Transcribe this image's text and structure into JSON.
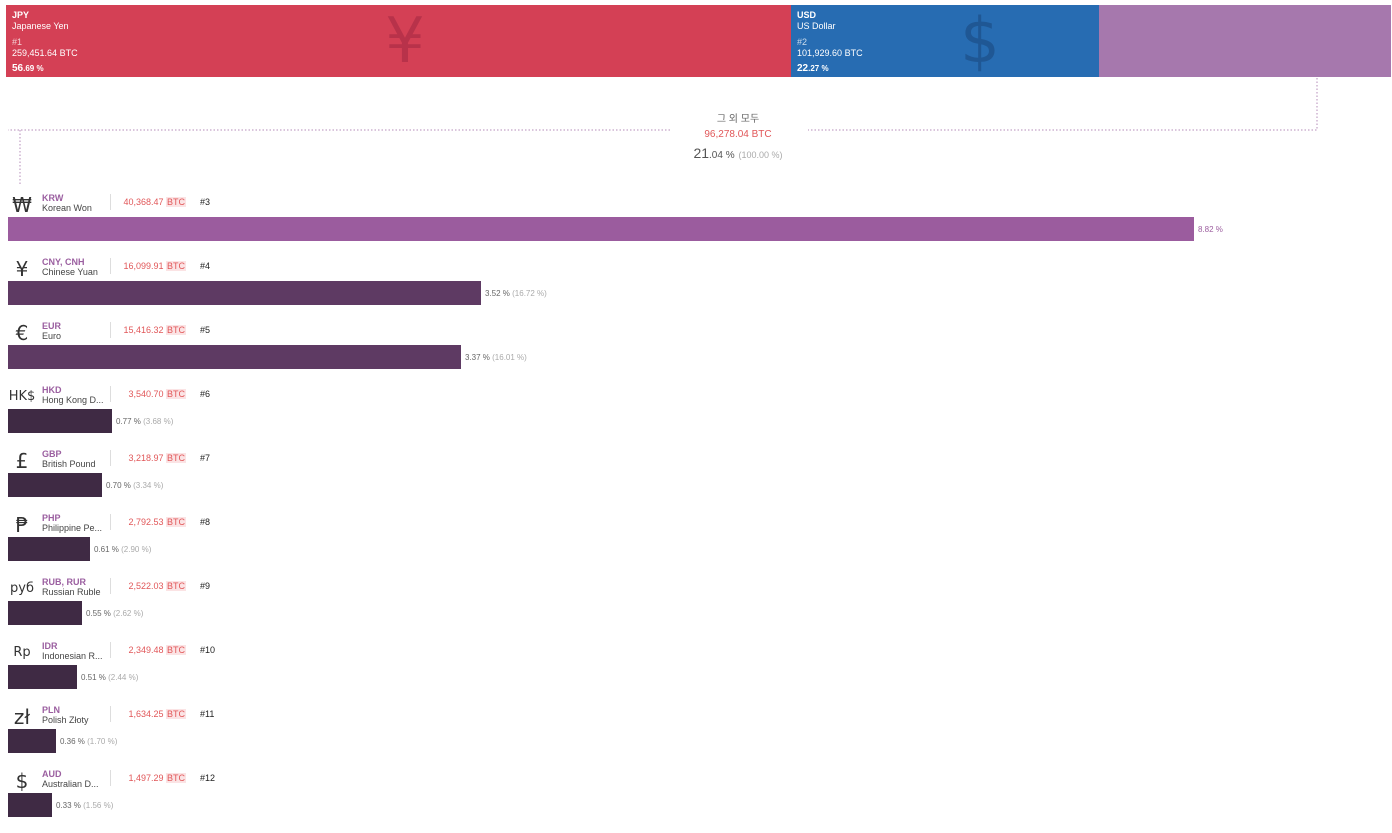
{
  "chart_data": {
    "type": "bar",
    "unit": "BTC",
    "top": [
      {
        "code": "JPY",
        "name": "Japanese Yen",
        "symbol": "¥",
        "rank": "#1",
        "btc": "259,451.64",
        "pct_int": "56",
        "pct_dec": ".69",
        "value": 56.69,
        "color": "#d44055",
        "symbol_color": "#b8324a"
      },
      {
        "code": "USD",
        "name": "US Dollar",
        "symbol": "$",
        "rank": "#2",
        "btc": "101,929.60",
        "pct_int": "22",
        "pct_dec": ".27",
        "value": 22.27,
        "color": "#276cb2",
        "symbol_color": "#1f5794"
      },
      {
        "code": "",
        "name": "",
        "symbol": "",
        "rank": "",
        "btc": "",
        "pct_int": "",
        "pct_dec": "",
        "value": 21.04,
        "color": "#a678ad",
        "symbol_color": "#a678ad"
      }
    ],
    "others": {
      "label": "그 외 모두",
      "btc": "96,278.04",
      "pct_int": "21",
      "pct_dec": ".04",
      "share": "(100.00 %)"
    },
    "currencies": [
      {
        "symbol": "₩",
        "code": "KRW",
        "name": "Korean Won",
        "btc": "40,368.47",
        "rank": "#3",
        "value": 8.82,
        "pct": "8.82 %",
        "share": "",
        "color": "#9b5c9e"
      },
      {
        "symbol": "¥",
        "code": "CNY, CNH",
        "name": "Chinese Yuan",
        "btc": "16,099.91",
        "rank": "#4",
        "value": 3.52,
        "pct": "3.52 %",
        "share": "(16.72 %)",
        "color": "#5e3a63"
      },
      {
        "symbol": "€",
        "code": "EUR",
        "name": "Euro",
        "btc": "15,416.32",
        "rank": "#5",
        "value": 3.37,
        "pct": "3.37 %",
        "share": "(16.01 %)",
        "color": "#5e3a63"
      },
      {
        "symbol": "HK$",
        "code": "HKD",
        "name": "Hong Kong D...",
        "btc": "3,540.70",
        "rank": "#6",
        "value": 0.77,
        "pct": "0.77 %",
        "share": "(3.68 %)",
        "color": "#3f2a44"
      },
      {
        "symbol": "£",
        "code": "GBP",
        "name": "British Pound",
        "btc": "3,218.97",
        "rank": "#7",
        "value": 0.7,
        "pct": "0.70 %",
        "share": "(3.34 %)",
        "color": "#3f2a44"
      },
      {
        "symbol": "₱",
        "code": "PHP",
        "name": "Philippine Pe...",
        "btc": "2,792.53",
        "rank": "#8",
        "value": 0.61,
        "pct": "0.61 %",
        "share": "(2.90 %)",
        "color": "#3f2a44"
      },
      {
        "symbol": "руб",
        "code": "RUB, RUR",
        "name": "Russian Ruble",
        "btc": "2,522.03",
        "rank": "#9",
        "value": 0.55,
        "pct": "0.55 %",
        "share": "(2.62 %)",
        "color": "#3f2a44"
      },
      {
        "symbol": "Rp",
        "code": "IDR",
        "name": "Indonesian R...",
        "btc": "2,349.48",
        "rank": "#10",
        "value": 0.51,
        "pct": "0.51 %",
        "share": "(2.44 %)",
        "color": "#3f2a44"
      },
      {
        "symbol": "zł",
        "code": "PLN",
        "name": "Polish Złoty",
        "btc": "1,634.25",
        "rank": "#11",
        "value": 0.36,
        "pct": "0.36 %",
        "share": "(1.70 %)",
        "color": "#3f2a44"
      },
      {
        "symbol": "$",
        "code": "AUD",
        "name": "Australian D...",
        "btc": "1,497.29",
        "rank": "#12",
        "value": 0.33,
        "pct": "0.33 %",
        "share": "(1.56 %)",
        "color": "#3f2a44"
      }
    ],
    "xlim": [
      0,
      8.82
    ]
  }
}
